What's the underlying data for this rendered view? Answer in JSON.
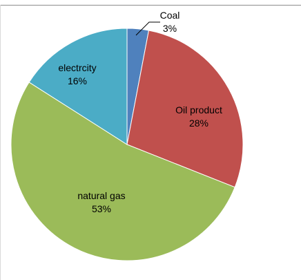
{
  "chart_data": {
    "type": "pie",
    "slices": [
      {
        "label": "Coal",
        "value": 3,
        "value_label": "3%",
        "color": "#4f81bd"
      },
      {
        "label": "Oil product",
        "value": 28,
        "value_label": "28%",
        "color": "#c0504d"
      },
      {
        "label": "natural gas",
        "value": 53,
        "value_label": "53%",
        "color": "#9bbb59"
      },
      {
        "label": "electrcity",
        "value": 16,
        "value_label": "16%",
        "color": "#4bacc6"
      }
    ],
    "start_angle": "12 o'clock",
    "direction": "clockwise",
    "legend": "none",
    "data_labels": "category name and percentage"
  }
}
